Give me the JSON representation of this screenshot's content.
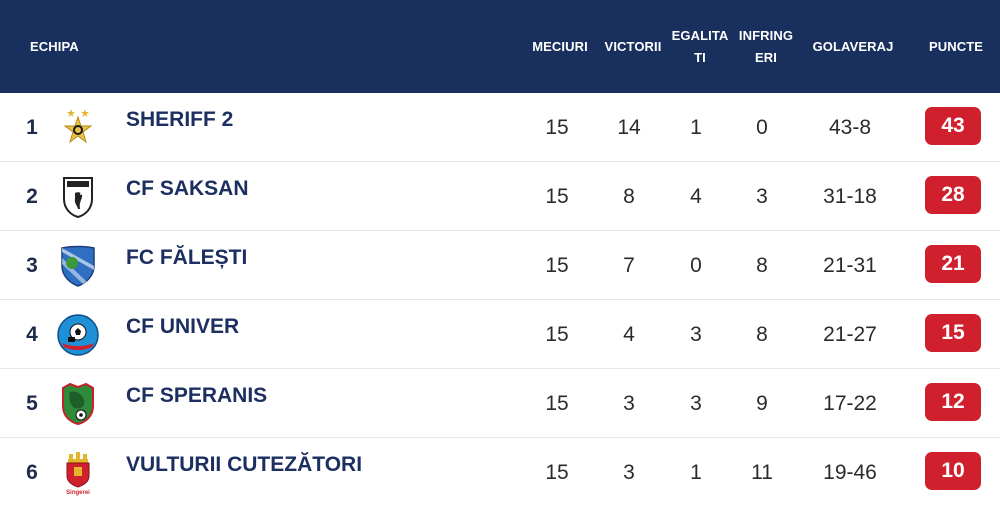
{
  "header": {
    "team": "ECHIPA",
    "played": "MECIURI",
    "wins": "VICTORII",
    "draws": "EGALITATI",
    "losses": "INFRINGERI",
    "goals": "GOLAVERAJ",
    "points": "PUNCTE"
  },
  "colors": {
    "header_bg": "#19305e",
    "points_badge": "#d0202e",
    "team_name": "#1d2f60"
  },
  "rows": [
    {
      "rank": "1",
      "name": "SHERIFF 2",
      "played": "15",
      "wins": "14",
      "draws": "1",
      "losses": "0",
      "goals": "43-8",
      "points": "43",
      "logo": "sheriff-star-crest-icon"
    },
    {
      "rank": "2",
      "name": "CF SAKSAN",
      "played": "15",
      "wins": "8",
      "draws": "4",
      "losses": "3",
      "goals": "31-18",
      "points": "28",
      "logo": "saksan-bird-shield-icon"
    },
    {
      "rank": "3",
      "name": "FC FĂLEȘTI",
      "played": "15",
      "wins": "7",
      "draws": "0",
      "losses": "8",
      "goals": "21-31",
      "points": "21",
      "logo": "falesti-blue-shield-icon"
    },
    {
      "rank": "4",
      "name": "CF UNIVER",
      "played": "15",
      "wins": "4",
      "draws": "3",
      "losses": "8",
      "goals": "21-27",
      "points": "15",
      "logo": "univer-ball-circle-icon"
    },
    {
      "rank": "5",
      "name": "CF SPERANIS",
      "played": "15",
      "wins": "3",
      "draws": "3",
      "losses": "9",
      "goals": "17-22",
      "points": "12",
      "logo": "speranis-green-shield-icon"
    },
    {
      "rank": "6",
      "name": "VULTURII CUTEZĂTORI",
      "played": "15",
      "wins": "3",
      "draws": "1",
      "losses": "11",
      "goals": "19-46",
      "points": "10",
      "logo": "vulturii-castle-crest-icon",
      "logo_text": "Singerei"
    }
  ]
}
